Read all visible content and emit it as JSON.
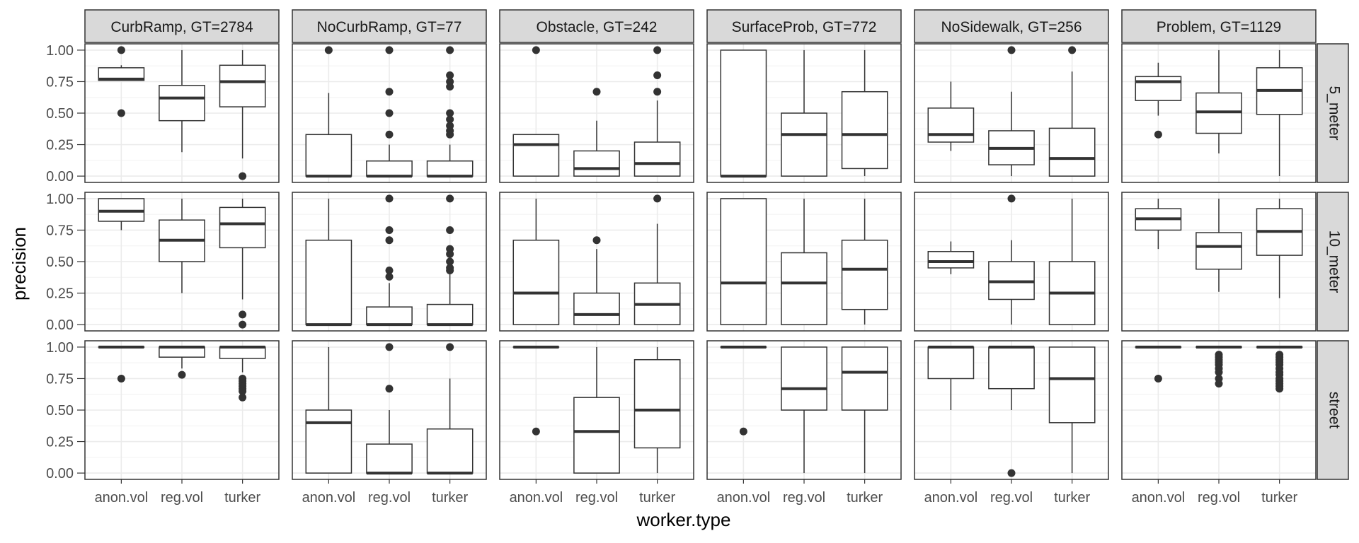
{
  "chart_data": {
    "type": "boxplot",
    "ylabel": "precision",
    "xlabel": "worker.type",
    "categories": [
      "anon.vol",
      "reg.vol",
      "turker"
    ],
    "yticks": [
      "0.00",
      "0.25",
      "0.50",
      "0.75",
      "1.00"
    ],
    "ylim": [
      -0.05,
      1.05
    ],
    "columns": [
      "CurbRamp, GT=2784",
      "NoCurbRamp, GT=77",
      "Obstacle, GT=242",
      "SurfaceProb, GT=772",
      "NoSidewalk, GT=256",
      "Problem, GT=1129"
    ],
    "rows": [
      "5_meter",
      "10_meter",
      "street"
    ],
    "panels": [
      [
        [
          {
            "whislo": 0.76,
            "q1": 0.76,
            "med": 0.77,
            "q3": 0.86,
            "whishi": 0.88,
            "outliers": [
              1.0,
              0.5
            ]
          },
          {
            "whislo": 0.19,
            "q1": 0.44,
            "med": 0.62,
            "q3": 0.72,
            "whishi": 1.0,
            "outliers": []
          },
          {
            "whislo": 0.14,
            "q1": 0.55,
            "med": 0.75,
            "q3": 0.88,
            "whishi": 1.0,
            "outliers": [
              0.0
            ]
          }
        ],
        [
          {
            "whislo": 0.0,
            "q1": 0.0,
            "med": 0.0,
            "q3": 0.33,
            "whishi": 0.66,
            "outliers": [
              1.0
            ]
          },
          {
            "whislo": 0.0,
            "q1": 0.0,
            "med": 0.0,
            "q3": 0.12,
            "whishi": 0.25,
            "outliers": [
              1.0,
              0.67,
              0.5,
              0.33
            ]
          },
          {
            "whislo": 0.0,
            "q1": 0.0,
            "med": 0.0,
            "q3": 0.12,
            "whishi": 0.25,
            "outliers": [
              1.0,
              0.8,
              0.75,
              0.71,
              0.5,
              0.45,
              0.4,
              0.36,
              0.33
            ]
          }
        ],
        [
          {
            "whislo": 0.0,
            "q1": 0.0,
            "med": 0.25,
            "q3": 0.33,
            "whishi": 0.33,
            "outliers": [
              1.0
            ]
          },
          {
            "whislo": 0.0,
            "q1": 0.0,
            "med": 0.06,
            "q3": 0.2,
            "whishi": 0.44,
            "outliers": [
              0.67
            ]
          },
          {
            "whislo": 0.0,
            "q1": 0.0,
            "med": 0.1,
            "q3": 0.27,
            "whishi": 0.6,
            "outliers": [
              1.0,
              0.8,
              0.67
            ]
          }
        ],
        [
          {
            "whislo": 0.0,
            "q1": 0.0,
            "med": 0.0,
            "q3": 1.0,
            "whishi": 1.0,
            "outliers": []
          },
          {
            "whislo": 0.0,
            "q1": 0.0,
            "med": 0.33,
            "q3": 0.5,
            "whishi": 1.0,
            "outliers": []
          },
          {
            "whislo": 0.0,
            "q1": 0.06,
            "med": 0.33,
            "q3": 0.67,
            "whishi": 1.0,
            "outliers": []
          }
        ],
        [
          {
            "whislo": 0.2,
            "q1": 0.27,
            "med": 0.33,
            "q3": 0.54,
            "whishi": 0.75,
            "outliers": []
          },
          {
            "whislo": 0.0,
            "q1": 0.09,
            "med": 0.22,
            "q3": 0.36,
            "whishi": 0.67,
            "outliers": [
              1.0
            ]
          },
          {
            "whislo": 0.0,
            "q1": 0.0,
            "med": 0.14,
            "q3": 0.38,
            "whishi": 0.83,
            "outliers": [
              1.0
            ]
          }
        ],
        [
          {
            "whislo": 0.48,
            "q1": 0.6,
            "med": 0.75,
            "q3": 0.79,
            "whishi": 0.9,
            "outliers": [
              0.33
            ]
          },
          {
            "whislo": 0.18,
            "q1": 0.34,
            "med": 0.51,
            "q3": 0.66,
            "whishi": 1.0,
            "outliers": []
          },
          {
            "whislo": 0.0,
            "q1": 0.49,
            "med": 0.68,
            "q3": 0.86,
            "whishi": 1.0,
            "outliers": []
          }
        ]
      ],
      [
        [
          {
            "whislo": 0.75,
            "q1": 0.82,
            "med": 0.9,
            "q3": 1.0,
            "whishi": 1.0,
            "outliers": []
          },
          {
            "whislo": 0.25,
            "q1": 0.5,
            "med": 0.67,
            "q3": 0.83,
            "whishi": 1.0,
            "outliers": []
          },
          {
            "whislo": 0.2,
            "q1": 0.61,
            "med": 0.8,
            "q3": 0.93,
            "whishi": 1.0,
            "outliers": [
              0.08,
              0.0
            ]
          }
        ],
        [
          {
            "whislo": 0.0,
            "q1": 0.0,
            "med": 0.0,
            "q3": 0.67,
            "whishi": 1.0,
            "outliers": []
          },
          {
            "whislo": 0.0,
            "q1": 0.0,
            "med": 0.0,
            "q3": 0.14,
            "whishi": 0.33,
            "outliers": [
              1.0,
              0.75,
              0.67,
              0.43,
              0.38
            ]
          },
          {
            "whislo": 0.0,
            "q1": 0.0,
            "med": 0.0,
            "q3": 0.16,
            "whishi": 0.4,
            "outliers": [
              1.0,
              0.75,
              0.6,
              0.56,
              0.5,
              0.45,
              0.43
            ]
          }
        ],
        [
          {
            "whislo": 0.0,
            "q1": 0.0,
            "med": 0.25,
            "q3": 0.67,
            "whishi": 1.0,
            "outliers": []
          },
          {
            "whislo": 0.0,
            "q1": 0.0,
            "med": 0.08,
            "q3": 0.25,
            "whishi": 0.6,
            "outliers": [
              0.67
            ]
          },
          {
            "whislo": 0.0,
            "q1": 0.0,
            "med": 0.16,
            "q3": 0.33,
            "whishi": 0.8,
            "outliers": [
              1.0
            ]
          }
        ],
        [
          {
            "whislo": 0.0,
            "q1": 0.0,
            "med": 0.33,
            "q3": 1.0,
            "whishi": 1.0,
            "outliers": []
          },
          {
            "whislo": 0.0,
            "q1": 0.0,
            "med": 0.33,
            "q3": 0.57,
            "whishi": 1.0,
            "outliers": []
          },
          {
            "whislo": 0.0,
            "q1": 0.12,
            "med": 0.44,
            "q3": 0.67,
            "whishi": 1.0,
            "outliers": []
          }
        ],
        [
          {
            "whislo": 0.4,
            "q1": 0.45,
            "med": 0.5,
            "q3": 0.58,
            "whishi": 0.66,
            "outliers": []
          },
          {
            "whislo": 0.0,
            "q1": 0.2,
            "med": 0.34,
            "q3": 0.5,
            "whishi": 0.67,
            "outliers": [
              1.0
            ]
          },
          {
            "whislo": 0.0,
            "q1": 0.0,
            "med": 0.25,
            "q3": 0.5,
            "whishi": 1.0,
            "outliers": []
          }
        ],
        [
          {
            "whislo": 0.6,
            "q1": 0.75,
            "med": 0.84,
            "q3": 0.92,
            "whishi": 1.0,
            "outliers": []
          },
          {
            "whislo": 0.26,
            "q1": 0.44,
            "med": 0.62,
            "q3": 0.73,
            "whishi": 1.0,
            "outliers": []
          },
          {
            "whislo": 0.21,
            "q1": 0.55,
            "med": 0.74,
            "q3": 0.92,
            "whishi": 1.0,
            "outliers": []
          }
        ]
      ],
      [
        [
          {
            "whislo": 1.0,
            "q1": 1.0,
            "med": 1.0,
            "q3": 1.0,
            "whishi": 1.0,
            "outliers": [
              0.75
            ]
          },
          {
            "whislo": 0.83,
            "q1": 0.92,
            "med": 1.0,
            "q3": 1.0,
            "whishi": 1.0,
            "outliers": [
              0.78
            ]
          },
          {
            "whislo": 0.8,
            "q1": 0.91,
            "med": 1.0,
            "q3": 1.0,
            "whishi": 1.0,
            "outliers": [
              0.75,
              0.73,
              0.71,
              0.69,
              0.67,
              0.65,
              0.6
            ]
          }
        ],
        [
          {
            "whislo": 0.0,
            "q1": 0.0,
            "med": 0.4,
            "q3": 0.5,
            "whishi": 1.0,
            "outliers": []
          },
          {
            "whislo": 0.0,
            "q1": 0.0,
            "med": 0.0,
            "q3": 0.23,
            "whishi": 0.5,
            "outliers": [
              1.0,
              0.67
            ]
          },
          {
            "whislo": 0.0,
            "q1": 0.0,
            "med": 0.0,
            "q3": 0.35,
            "whishi": 0.75,
            "outliers": [
              1.0
            ]
          }
        ],
        [
          {
            "whislo": 1.0,
            "q1": 1.0,
            "med": 1.0,
            "q3": 1.0,
            "whishi": 1.0,
            "outliers": [
              0.33
            ]
          },
          {
            "whislo": 0.0,
            "q1": 0.0,
            "med": 0.33,
            "q3": 0.6,
            "whishi": 1.0,
            "outliers": []
          },
          {
            "whislo": 0.0,
            "q1": 0.2,
            "med": 0.5,
            "q3": 0.9,
            "whishi": 1.0,
            "outliers": []
          }
        ],
        [
          {
            "whislo": 1.0,
            "q1": 1.0,
            "med": 1.0,
            "q3": 1.0,
            "whishi": 1.0,
            "outliers": [
              0.33
            ]
          },
          {
            "whislo": 0.0,
            "q1": 0.5,
            "med": 0.67,
            "q3": 1.0,
            "whishi": 1.0,
            "outliers": []
          },
          {
            "whislo": 0.0,
            "q1": 0.5,
            "med": 0.8,
            "q3": 1.0,
            "whishi": 1.0,
            "outliers": []
          }
        ],
        [
          {
            "whislo": 0.5,
            "q1": 0.75,
            "med": 1.0,
            "q3": 1.0,
            "whishi": 1.0,
            "outliers": []
          },
          {
            "whislo": 0.5,
            "q1": 0.67,
            "med": 1.0,
            "q3": 1.0,
            "whishi": 1.0,
            "outliers": [
              0.0
            ]
          },
          {
            "whislo": 0.0,
            "q1": 0.4,
            "med": 0.75,
            "q3": 1.0,
            "whishi": 1.0,
            "outliers": []
          }
        ],
        [
          {
            "whislo": 1.0,
            "q1": 1.0,
            "med": 1.0,
            "q3": 1.0,
            "whishi": 1.0,
            "outliers": [
              0.75
            ]
          },
          {
            "whislo": 1.0,
            "q1": 1.0,
            "med": 1.0,
            "q3": 1.0,
            "whishi": 1.0,
            "outliers": [
              0.94,
              0.92,
              0.9,
              0.88,
              0.86,
              0.83,
              0.8,
              0.75,
              0.71
            ]
          },
          {
            "whislo": 1.0,
            "q1": 1.0,
            "med": 1.0,
            "q3": 1.0,
            "whishi": 1.0,
            "outliers": [
              0.94,
              0.92,
              0.9,
              0.88,
              0.86,
              0.83,
              0.8,
              0.78,
              0.75,
              0.73,
              0.71,
              0.69,
              0.67
            ]
          }
        ]
      ]
    ]
  }
}
